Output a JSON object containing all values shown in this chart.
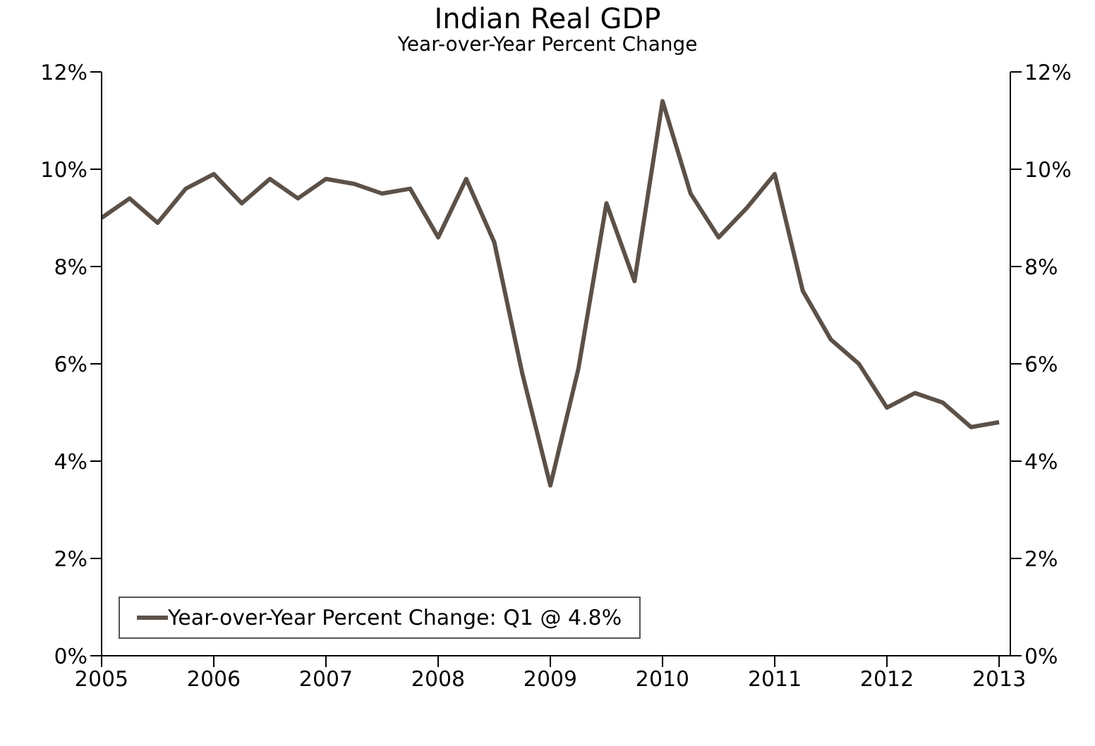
{
  "chart_data": {
    "type": "line",
    "title": "Indian Real GDP",
    "subtitle": "Year-over-Year Percent Change",
    "x": [
      2005,
      2005.25,
      2005.5,
      2005.75,
      2006,
      2006.25,
      2006.5,
      2006.75,
      2007,
      2007.25,
      2007.5,
      2007.75,
      2008,
      2008.25,
      2008.5,
      2008.75,
      2009,
      2009.25,
      2009.5,
      2009.75,
      2010,
      2010.25,
      2010.5,
      2010.75,
      2011,
      2011.25,
      2011.5,
      2011.75,
      2012,
      2012.25,
      2012.5,
      2012.75,
      2013
    ],
    "series": [
      {
        "name": "Year-over-Year Percent Change: Q1 @ 4.8%",
        "color": "#5c5148",
        "values": [
          9.0,
          9.4,
          8.9,
          9.6,
          9.9,
          9.3,
          9.8,
          9.4,
          9.8,
          9.7,
          9.5,
          9.6,
          8.6,
          9.8,
          8.5,
          5.8,
          3.5,
          5.9,
          9.3,
          7.7,
          11.4,
          9.5,
          8.6,
          9.2,
          9.9,
          7.5,
          6.5,
          6.0,
          5.1,
          5.4,
          5.2,
          4.7,
          4.8
        ]
      }
    ],
    "xlim": [
      2005,
      2013.1
    ],
    "xticks": [
      2005,
      2006,
      2007,
      2008,
      2009,
      2010,
      2011,
      2012,
      2013
    ],
    "ylim": [
      0,
      12
    ],
    "yticks": [
      {
        "value": 0,
        "label": "0%"
      },
      {
        "value": 2,
        "label": "2%"
      },
      {
        "value": 4,
        "label": "4%"
      },
      {
        "value": 6,
        "label": "6%"
      },
      {
        "value": 8,
        "label": "8%"
      },
      {
        "value": 10,
        "label": "10%"
      },
      {
        "value": 12,
        "label": "12%"
      }
    ],
    "y2lim": [
      0,
      12
    ],
    "y2ticks": [
      {
        "value": 0,
        "label": "0%"
      },
      {
        "value": 2,
        "label": "2%"
      },
      {
        "value": 4,
        "label": "4%"
      },
      {
        "value": 6,
        "label": "6%"
      },
      {
        "value": 8,
        "label": "8%"
      },
      {
        "value": 10,
        "label": "10%"
      },
      {
        "value": 12,
        "label": "12%"
      }
    ],
    "grid": false,
    "legend": "bottom left",
    "marker": "none",
    "line_style": "solid"
  }
}
